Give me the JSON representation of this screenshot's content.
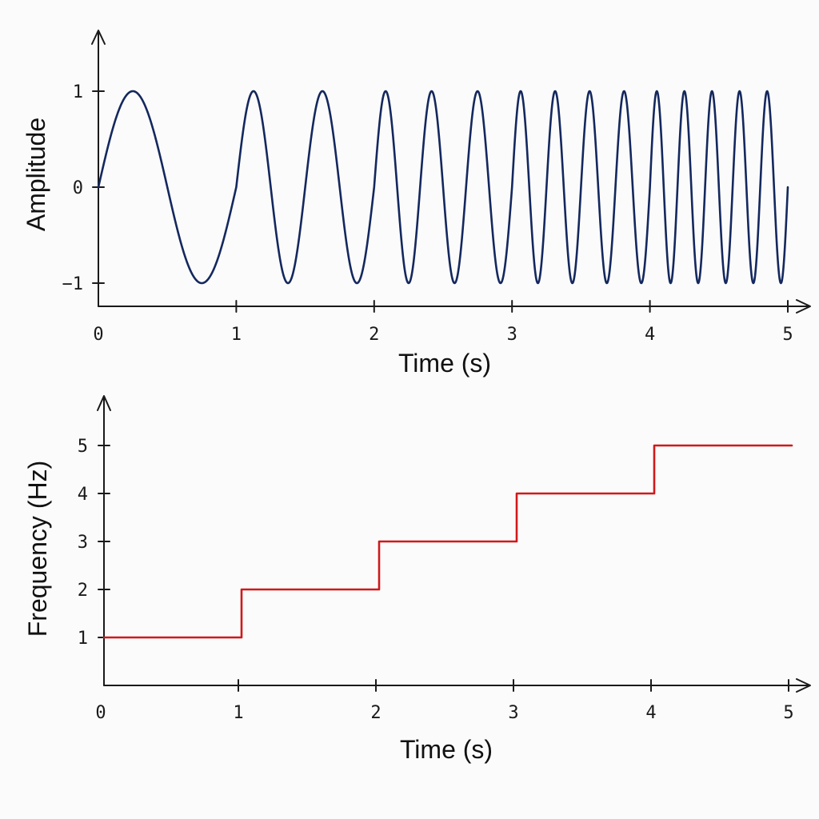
{
  "chart_data": [
    {
      "type": "line",
      "title": "",
      "xlabel": "Time (s)",
      "ylabel": "Amplitude",
      "xlim": [
        0,
        5
      ],
      "ylim": [
        -1,
        1
      ],
      "x_ticks": [
        "0",
        "1",
        "2",
        "3",
        "4",
        "5"
      ],
      "y_ticks": [
        "1",
        "0",
        "−1"
      ],
      "grid": false,
      "legend": "none",
      "series": [
        {
          "color": "#14285e",
          "function": "sin(2*pi*phase(t))",
          "frequency_by_second": [
            1,
            2,
            3,
            4,
            5
          ],
          "x": [
            0,
            0.25,
            0.75,
            1.0,
            1.125,
            1.375,
            1.625,
            1.875,
            2.0,
            2.083,
            2.25,
            2.417,
            2.583,
            2.75,
            2.917,
            3.0,
            3.0625,
            3.1875,
            3.3125,
            3.4375,
            3.5625,
            3.6875,
            3.8125,
            3.9375,
            4.0,
            4.05,
            4.15,
            4.25,
            4.35,
            4.45,
            4.55,
            4.65,
            4.75,
            4.85,
            4.95,
            5.0
          ],
          "y": [
            0,
            1,
            -1,
            0,
            1,
            -1,
            1,
            -1,
            0,
            1,
            -1,
            1,
            -1,
            1,
            -1,
            0,
            1,
            -1,
            1,
            -1,
            1,
            -1,
            1,
            -1,
            0,
            1,
            -1,
            1,
            -1,
            1,
            -1,
            1,
            -1,
            1,
            -1,
            0
          ]
        }
      ]
    },
    {
      "type": "line",
      "title": "",
      "xlabel": "Time (s)",
      "ylabel": "Frequency (Hz)",
      "xlim": [
        0,
        5
      ],
      "ylim": [
        0,
        5
      ],
      "x_ticks": [
        "0",
        "1",
        "2",
        "3",
        "4",
        "5"
      ],
      "y_ticks": [
        "1",
        "2",
        "3",
        "4",
        "5"
      ],
      "grid": false,
      "legend": "none",
      "series": [
        {
          "color": "#d0191b",
          "step": "post",
          "x": [
            0,
            1,
            2,
            3,
            4,
            5
          ],
          "y": [
            1,
            2,
            3,
            4,
            5,
            5
          ]
        }
      ]
    }
  ]
}
